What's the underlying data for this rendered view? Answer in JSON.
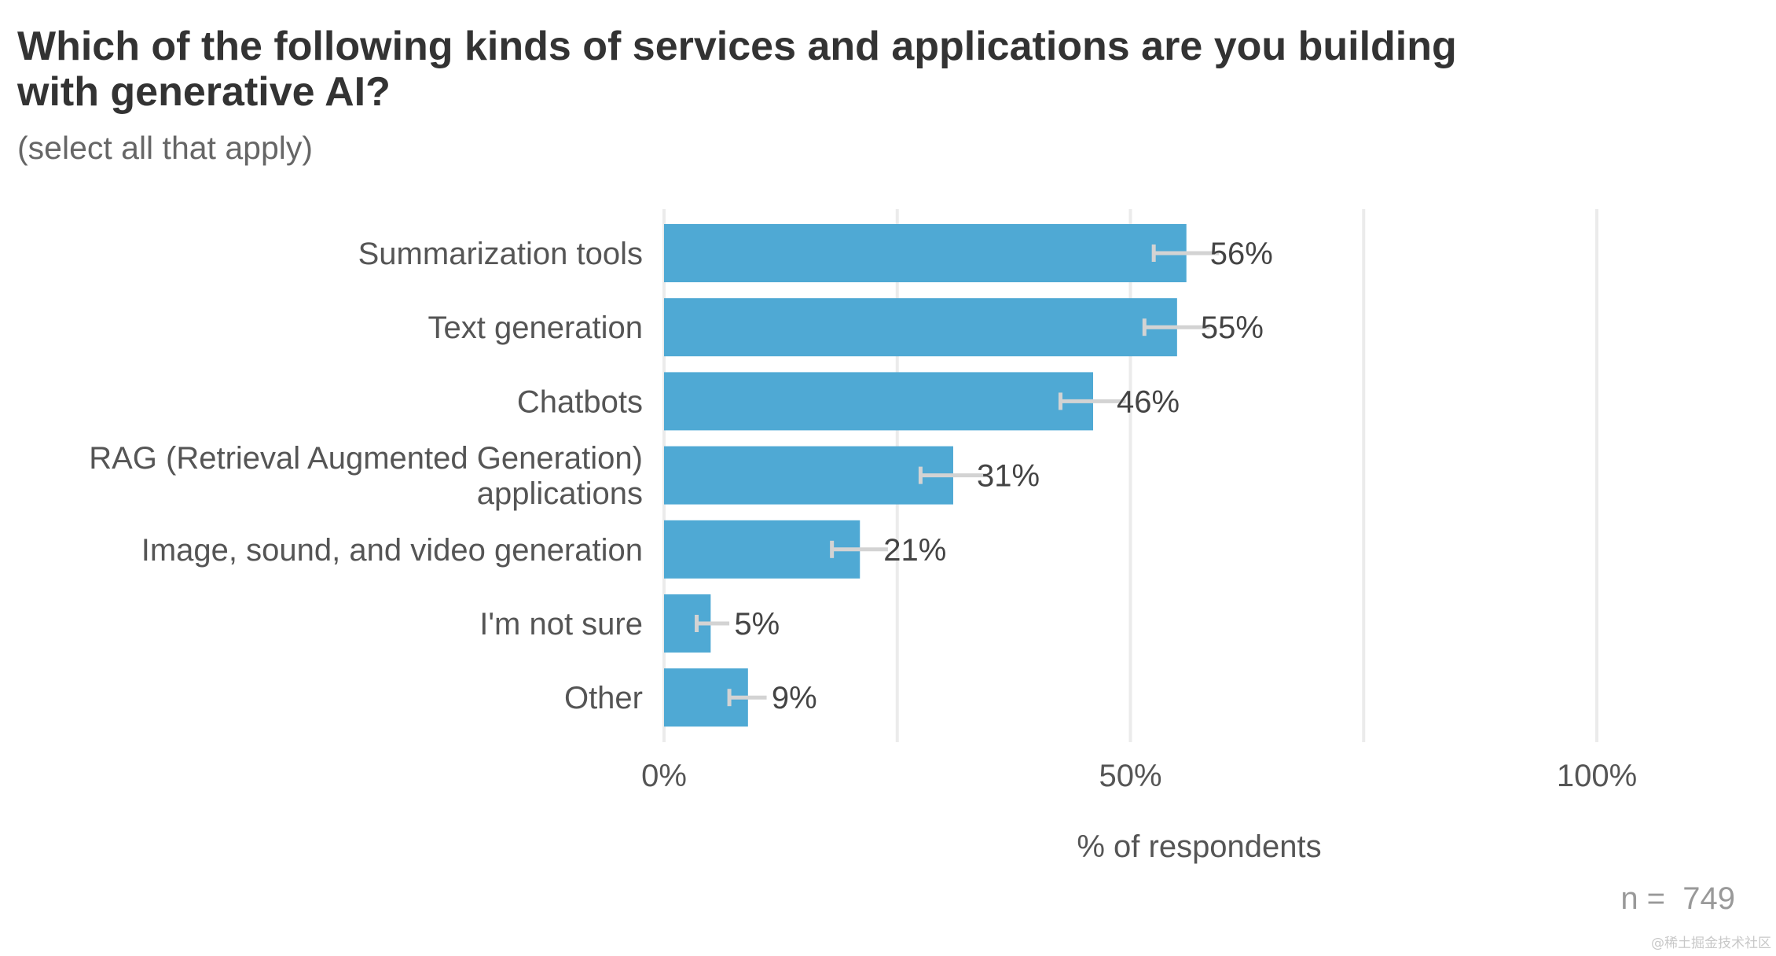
{
  "chart_data": {
    "type": "bar",
    "orientation": "horizontal",
    "title": "Which of the following kinds of services and applications are you building with generative AI?",
    "subtitle": "(select all that apply)",
    "categories": [
      "Summarization tools",
      "Text generation",
      "Chatbots",
      "RAG (Retrieval Augmented Generation) applications",
      "Image, sound, and video generation",
      "I'm not sure",
      "Other"
    ],
    "values": [
      56,
      55,
      46,
      31,
      21,
      5,
      9
    ],
    "data_labels": [
      "56%",
      "55%",
      "46%",
      "31%",
      "21%",
      "5%",
      "9%"
    ],
    "error_bars": [
      {
        "low": 52.5,
        "high": 59.5
      },
      {
        "low": 51.5,
        "high": 58.5
      },
      {
        "low": 42.5,
        "high": 49.5
      },
      {
        "low": 27.5,
        "high": 34.5
      },
      {
        "low": 18,
        "high": 24
      },
      {
        "low": 3.5,
        "high": 7
      },
      {
        "low": 7,
        "high": 11
      }
    ],
    "xlabel": "% of respondents",
    "ylabel": "",
    "xlim": [
      0,
      100
    ],
    "x_ticks": [
      0,
      50,
      100
    ],
    "x_tick_labels": [
      "0%",
      "50%",
      "100%"
    ],
    "grid": true,
    "bar_color": "#4fa9d4",
    "error_bar_color": "#d3d3d3",
    "note": "n =  749"
  },
  "watermark": "@稀土掘金技术社区"
}
